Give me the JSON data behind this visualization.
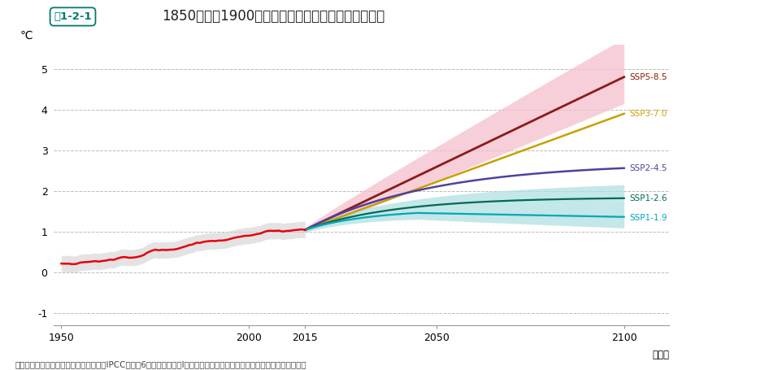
{
  "title": "1850年から1900年を基準とした世界平均気温の変化",
  "figure_label": "図1-2-1",
  "ylabel": "℃",
  "year_label": "（年）",
  "source": "資料：気候変動に関する政府間パネル（IPCC）「第6次評価報告書第Ⅰ作業部会報告書政策決定者向け要約」より環境省作成",
  "background_color": "#ffffff",
  "grid_color": "#bbbbbb",
  "historical_color": "#e8000d",
  "historical_band_color": "#cccccc",
  "ssp585_color": "#8B1A1A",
  "ssp585_band_color": "#f5c0cc",
  "ssp585_label": "SSP5-8.5",
  "ssp585_label_color": "#8B2000",
  "ssp370_color": "#c8a000",
  "ssp370_label": "SSP3-7.0",
  "ssp370_label_color": "#c8a000",
  "ssp245_color": "#5040a0",
  "ssp245_label": "SSP2-4.5",
  "ssp245_label_color": "#5040a0",
  "ssp126_color": "#006858",
  "ssp126_band_color": "#b0e0e0",
  "ssp126_label": "SSP1-2.6",
  "ssp126_label_color": "#006858",
  "ssp119_color": "#00a8b8",
  "ssp119_label": "SSP1-1.9",
  "ssp119_label_color": "#00a8b8",
  "label_fontsize": 7.5,
  "title_fontsize": 12,
  "tick_fontsize": 9,
  "source_fontsize": 7.5
}
